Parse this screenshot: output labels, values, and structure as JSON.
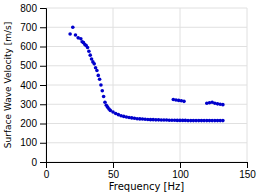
{
  "chart_data": {
    "type": "scatter",
    "xlabel": "Frequency [Hz]",
    "ylabel": "Surface Wave Velocity [m/s]",
    "color": "#0000cc",
    "xlim": [
      0,
      150
    ],
    "ylim": [
      0,
      800
    ],
    "xticks": [
      0,
      50,
      100,
      150
    ],
    "yticks": [
      0,
      100,
      200,
      300,
      400,
      500,
      600,
      700,
      800
    ],
    "grid": true,
    "x": [
      18,
      20,
      22,
      24,
      26,
      27,
      28,
      29,
      30,
      31,
      32,
      33,
      34,
      35,
      36,
      37,
      38,
      39,
      40,
      41,
      42,
      43,
      44,
      45,
      46,
      47,
      48,
      50,
      52,
      54,
      56,
      58,
      60,
      62,
      64,
      66,
      68,
      70,
      72,
      74,
      76,
      78,
      80,
      82,
      84,
      86,
      88,
      90,
      92,
      94,
      96,
      98,
      100,
      102,
      104,
      106,
      108,
      110,
      112,
      114,
      116,
      118,
      120,
      122,
      124,
      126,
      128,
      130,
      132,
      95,
      97,
      99,
      101,
      103,
      120,
      122,
      124,
      126,
      128,
      130,
      132
    ],
    "values": [
      665,
      700,
      660,
      645,
      640,
      625,
      620,
      610,
      605,
      595,
      575,
      555,
      535,
      520,
      510,
      490,
      475,
      450,
      430,
      400,
      370,
      340,
      310,
      295,
      285,
      275,
      268,
      260,
      252,
      246,
      240,
      237,
      234,
      231,
      229,
      227,
      225,
      224,
      223,
      222,
      221,
      220,
      220,
      219,
      219,
      218,
      218,
      218,
      217,
      217,
      217,
      216,
      216,
      216,
      216,
      215,
      215,
      215,
      215,
      215,
      215,
      215,
      215,
      215,
      215,
      215,
      215,
      215,
      215,
      325,
      322,
      320,
      318,
      315,
      305,
      308,
      310,
      305,
      302,
      300,
      298
    ]
  }
}
